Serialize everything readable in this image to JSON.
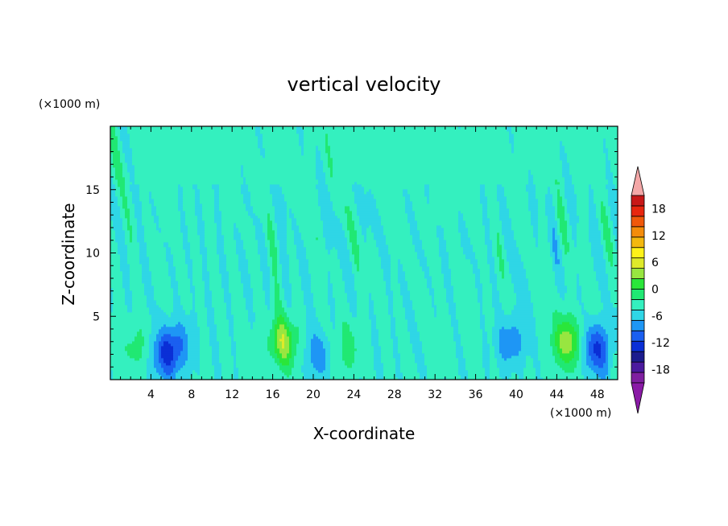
{
  "chart_data": {
    "type": "heatmap",
    "title": "vertical velocity",
    "xlabel": "X-coordinate",
    "ylabel": "Z-coordinate",
    "x_unit_label": "(×1000 m)",
    "y_unit_label": "(×1000 m)",
    "xlim": [
      0,
      50
    ],
    "ylim": [
      0,
      20
    ],
    "x_ticks": [
      4,
      8,
      12,
      16,
      20,
      24,
      28,
      32,
      36,
      40,
      44,
      48
    ],
    "y_ticks": [
      5,
      10,
      15
    ],
    "colorbar": {
      "range": [
        -21,
        21
      ],
      "step": 3,
      "extend": "both",
      "tick_labels": [
        18,
        12,
        6,
        0,
        -6,
        -12,
        -18
      ],
      "colors": [
        "#7f1fa0",
        "#4b1a9e",
        "#1c1c8e",
        "#0a2fd6",
        "#1a5ff0",
        "#1e96f5",
        "#2fd6e6",
        "#34f0bf",
        "#20e873",
        "#2ae63a",
        "#98e640",
        "#dfea2a",
        "#fff219",
        "#f3b80f",
        "#f48c0b",
        "#f0580b",
        "#e8260f",
        "#c81818"
      ],
      "over_color": "#f4a7a7",
      "under_color": "#8a1aa6"
    },
    "features": [
      {
        "x": 2.5,
        "z": 2.5,
        "w": 3.5
      },
      {
        "x": 5.5,
        "z": 2.0,
        "w": -10
      },
      {
        "x": 7.0,
        "z": 3.0,
        "w": -4
      },
      {
        "x": 17.0,
        "z": 3.0,
        "w": 10
      },
      {
        "x": 20.5,
        "z": 2.0,
        "w": -5
      },
      {
        "x": 23.5,
        "z": 2.5,
        "w": 4
      },
      {
        "x": 39.5,
        "z": 3.0,
        "w": -6
      },
      {
        "x": 45.0,
        "z": 3.0,
        "w": 10
      },
      {
        "x": 48.0,
        "z": 2.5,
        "w": -10
      }
    ]
  }
}
